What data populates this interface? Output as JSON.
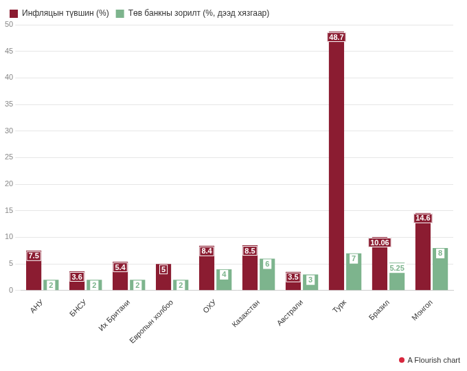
{
  "chart_data": {
    "type": "bar",
    "categories": [
      "АНУ",
      "БНСУ",
      "Их Британи",
      "Европын холбоо",
      "ОХУ",
      "Казахстан",
      "Австрали",
      "Турк",
      "Бразил",
      "Монгол"
    ],
    "series": [
      {
        "name": "Инфляцын түвшин (%)",
        "color": "#8b1c31",
        "values": [
          7.5,
          3.6,
          5.4,
          5,
          8.4,
          8.5,
          3.5,
          48.7,
          10.06,
          14.6
        ]
      },
      {
        "name": "Төв банкны зорилт (%, дээд хязгаар)",
        "color": "#7db48d",
        "values": [
          2,
          2,
          2,
          2,
          4,
          6,
          3,
          7,
          5.25,
          8
        ]
      }
    ],
    "ylim": [
      0,
      50
    ],
    "yticks": [
      0,
      5,
      10,
      15,
      20,
      25,
      30,
      35,
      40,
      45,
      50
    ],
    "grid": true,
    "legend": "top-left",
    "data_labels": true,
    "annotations": [
      "A Flourish chart"
    ]
  }
}
